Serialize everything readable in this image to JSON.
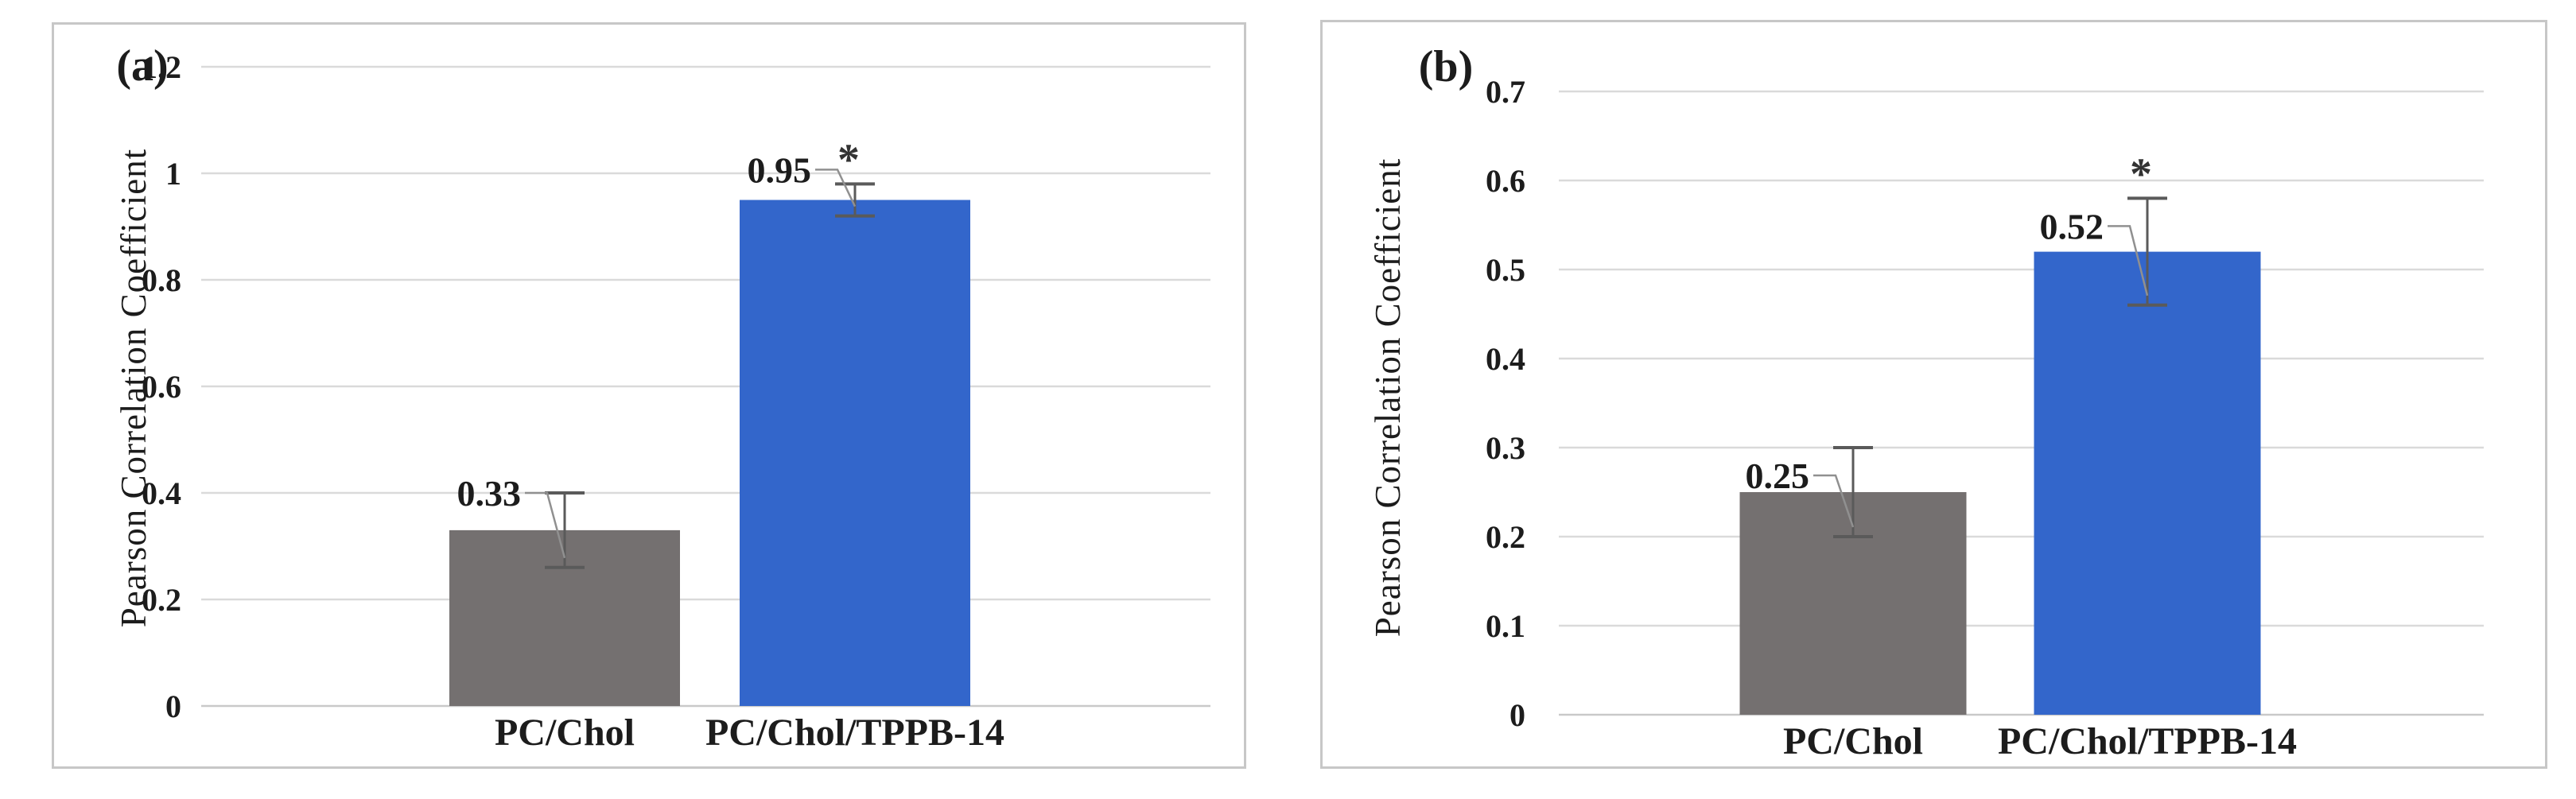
{
  "figure": {
    "background": "#ffffff",
    "panel_border_color": "#c7c7c7",
    "gridline_color": "#dadada",
    "axis_line_color": "#c9c9c9",
    "error_bar_color": "#5a5a5a",
    "leader_line_color": "#909090",
    "text_color": "#1c1c1c"
  },
  "chart_data": [
    {
      "type": "bar",
      "panel_label": "(a)",
      "title": "",
      "xlabel": "",
      "ylabel": "Pearson Correlation Coefficient",
      "categories": [
        "PC/Chol",
        "PC/Chol/TPPB-14"
      ],
      "values": [
        0.33,
        0.95
      ],
      "value_labels": [
        "0.33",
        "0.95"
      ],
      "errors": [
        0.07,
        0.03
      ],
      "significance": [
        "",
        "*"
      ],
      "bar_colors": [
        "#747070",
        "#3366CB"
      ],
      "ylim": [
        0,
        1.2
      ],
      "ytick_step": 0.2,
      "ytick_labels": [
        "0",
        "0.2",
        "0.4",
        "0.6",
        "0.8",
        "1",
        "1.2"
      ],
      "grid": true,
      "legend": "none"
    },
    {
      "type": "bar",
      "panel_label": "(b)",
      "title": "",
      "xlabel": "",
      "ylabel": "Pearson Correlation Coefficient",
      "categories": [
        "PC/Chol",
        "PC/Chol/TPPB-14"
      ],
      "values": [
        0.25,
        0.52
      ],
      "value_labels": [
        "0.25",
        "0.52"
      ],
      "errors": [
        0.05,
        0.06
      ],
      "significance": [
        "",
        "*"
      ],
      "bar_colors": [
        "#747070",
        "#3366CB"
      ],
      "ylim": [
        0,
        0.7
      ],
      "ytick_step": 0.1,
      "ytick_labels": [
        "0",
        "0.1",
        "0.2",
        "0.3",
        "0.4",
        "0.5",
        "0.6",
        "0.7"
      ],
      "grid": true,
      "legend": "none"
    }
  ]
}
